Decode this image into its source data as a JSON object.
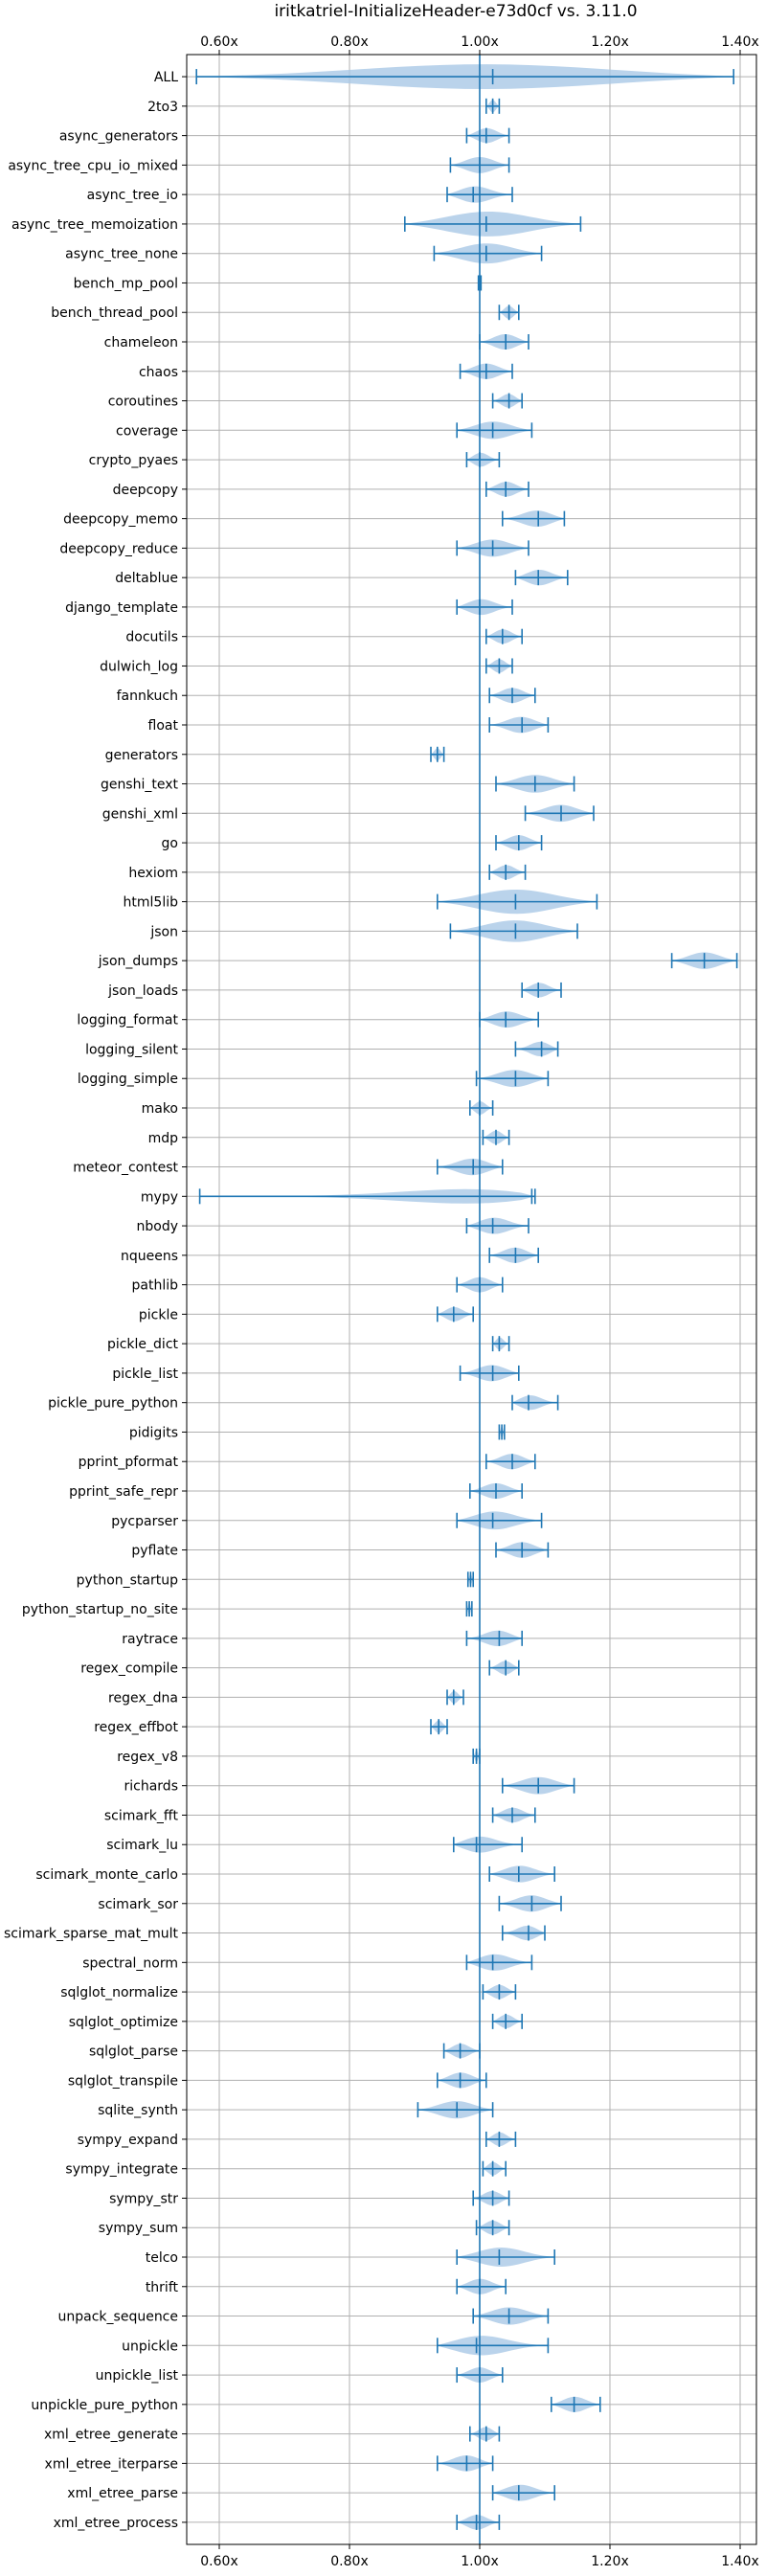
{
  "chart_data": {
    "type": "violin",
    "title": "iritkatriel-InitializeHeader-e73d0cf vs. 3.11.0",
    "xlabel": "",
    "ylabel": "",
    "xlim": [
      0.55,
      1.425
    ],
    "x_ticks": [
      0.6,
      0.8,
      1.0,
      1.2,
      1.4
    ],
    "x_tick_labels": [
      "0.60x",
      "0.80x",
      "1.00x",
      "1.20x",
      "1.40x"
    ],
    "reference_line": 1.0,
    "grid": true,
    "orientation": "horizontal",
    "color": "#1f77b4",
    "fill_color": "#a9c8e6",
    "categories": [
      {
        "name": "ALL",
        "min": 0.565,
        "max": 1.39,
        "mean": 1.02
      },
      {
        "name": "2to3",
        "min": 1.01,
        "max": 1.03,
        "mean": 1.02
      },
      {
        "name": "async_generators",
        "min": 0.98,
        "max": 1.045,
        "mean": 1.01
      },
      {
        "name": "async_tree_cpu_io_mixed",
        "min": 0.955,
        "max": 1.045,
        "mean": 1.0
      },
      {
        "name": "async_tree_io",
        "min": 0.95,
        "max": 1.05,
        "mean": 0.99
      },
      {
        "name": "async_tree_memoization",
        "min": 0.885,
        "max": 1.155,
        "mean": 1.01
      },
      {
        "name": "async_tree_none",
        "min": 0.93,
        "max": 1.095,
        "mean": 1.01
      },
      {
        "name": "bench_mp_pool",
        "min": 0.998,
        "max": 1.002,
        "mean": 1.0
      },
      {
        "name": "bench_thread_pool",
        "min": 1.03,
        "max": 1.06,
        "mean": 1.045
      },
      {
        "name": "chameleon",
        "min": 1.0,
        "max": 1.075,
        "mean": 1.04
      },
      {
        "name": "chaos",
        "min": 0.97,
        "max": 1.05,
        "mean": 1.01
      },
      {
        "name": "coroutines",
        "min": 1.02,
        "max": 1.065,
        "mean": 1.045
      },
      {
        "name": "coverage",
        "min": 0.965,
        "max": 1.08,
        "mean": 1.02
      },
      {
        "name": "crypto_pyaes",
        "min": 0.98,
        "max": 1.03,
        "mean": 1.0
      },
      {
        "name": "deepcopy",
        "min": 1.01,
        "max": 1.075,
        "mean": 1.04
      },
      {
        "name": "deepcopy_memo",
        "min": 1.035,
        "max": 1.13,
        "mean": 1.09
      },
      {
        "name": "deepcopy_reduce",
        "min": 0.965,
        "max": 1.075,
        "mean": 1.02
      },
      {
        "name": "deltablue",
        "min": 1.055,
        "max": 1.135,
        "mean": 1.09
      },
      {
        "name": "django_template",
        "min": 0.965,
        "max": 1.05,
        "mean": 1.0
      },
      {
        "name": "docutils",
        "min": 1.01,
        "max": 1.065,
        "mean": 1.035
      },
      {
        "name": "dulwich_log",
        "min": 1.01,
        "max": 1.05,
        "mean": 1.03
      },
      {
        "name": "fannkuch",
        "min": 1.015,
        "max": 1.085,
        "mean": 1.05
      },
      {
        "name": "float",
        "min": 1.015,
        "max": 1.105,
        "mean": 1.065
      },
      {
        "name": "generators",
        "min": 0.925,
        "max": 0.945,
        "mean": 0.935
      },
      {
        "name": "genshi_text",
        "min": 1.025,
        "max": 1.145,
        "mean": 1.085
      },
      {
        "name": "genshi_xml",
        "min": 1.07,
        "max": 1.175,
        "mean": 1.125
      },
      {
        "name": "go",
        "min": 1.025,
        "max": 1.095,
        "mean": 1.06
      },
      {
        "name": "hexiom",
        "min": 1.015,
        "max": 1.07,
        "mean": 1.04
      },
      {
        "name": "html5lib",
        "min": 0.935,
        "max": 1.18,
        "mean": 1.055
      },
      {
        "name": "json",
        "min": 0.955,
        "max": 1.15,
        "mean": 1.055
      },
      {
        "name": "json_dumps",
        "min": 1.295,
        "max": 1.395,
        "mean": 1.345
      },
      {
        "name": "json_loads",
        "min": 1.065,
        "max": 1.125,
        "mean": 1.09
      },
      {
        "name": "logging_format",
        "min": 1.0,
        "max": 1.09,
        "mean": 1.04
      },
      {
        "name": "logging_silent",
        "min": 1.055,
        "max": 1.12,
        "mean": 1.095
      },
      {
        "name": "logging_simple",
        "min": 0.995,
        "max": 1.105,
        "mean": 1.055
      },
      {
        "name": "mako",
        "min": 0.985,
        "max": 1.02,
        "mean": 1.0
      },
      {
        "name": "mdp",
        "min": 1.005,
        "max": 1.045,
        "mean": 1.025
      },
      {
        "name": "meteor_contest",
        "min": 0.935,
        "max": 1.035,
        "mean": 0.99
      },
      {
        "name": "mypy",
        "min": 0.57,
        "max": 1.085,
        "mean": 1.08
      },
      {
        "name": "nbody",
        "min": 0.98,
        "max": 1.075,
        "mean": 1.02
      },
      {
        "name": "nqueens",
        "min": 1.015,
        "max": 1.09,
        "mean": 1.055
      },
      {
        "name": "pathlib",
        "min": 0.965,
        "max": 1.035,
        "mean": 1.0
      },
      {
        "name": "pickle",
        "min": 0.935,
        "max": 0.99,
        "mean": 0.96
      },
      {
        "name": "pickle_dict",
        "min": 1.02,
        "max": 1.045,
        "mean": 1.03
      },
      {
        "name": "pickle_list",
        "min": 0.97,
        "max": 1.06,
        "mean": 1.02
      },
      {
        "name": "pickle_pure_python",
        "min": 1.05,
        "max": 1.12,
        "mean": 1.075
      },
      {
        "name": "pidigits",
        "min": 1.03,
        "max": 1.038,
        "mean": 1.034
      },
      {
        "name": "pprint_pformat",
        "min": 1.01,
        "max": 1.085,
        "mean": 1.05
      },
      {
        "name": "pprint_safe_repr",
        "min": 0.985,
        "max": 1.065,
        "mean": 1.025
      },
      {
        "name": "pycparser",
        "min": 0.965,
        "max": 1.095,
        "mean": 1.02
      },
      {
        "name": "pyflate",
        "min": 1.025,
        "max": 1.105,
        "mean": 1.065
      },
      {
        "name": "python_startup",
        "min": 0.982,
        "max": 0.99,
        "mean": 0.986
      },
      {
        "name": "python_startup_no_site",
        "min": 0.98,
        "max": 0.988,
        "mean": 0.984
      },
      {
        "name": "raytrace",
        "min": 0.98,
        "max": 1.065,
        "mean": 1.03
      },
      {
        "name": "regex_compile",
        "min": 1.015,
        "max": 1.06,
        "mean": 1.04
      },
      {
        "name": "regex_dna",
        "min": 0.95,
        "max": 0.975,
        "mean": 0.96
      },
      {
        "name": "regex_effbot",
        "min": 0.925,
        "max": 0.95,
        "mean": 0.937
      },
      {
        "name": "regex_v8",
        "min": 0.99,
        "max": 1.0,
        "mean": 0.995
      },
      {
        "name": "richards",
        "min": 1.035,
        "max": 1.145,
        "mean": 1.09
      },
      {
        "name": "scimark_fft",
        "min": 1.02,
        "max": 1.085,
        "mean": 1.05
      },
      {
        "name": "scimark_lu",
        "min": 0.96,
        "max": 1.065,
        "mean": 0.995
      },
      {
        "name": "scimark_monte_carlo",
        "min": 1.015,
        "max": 1.115,
        "mean": 1.06
      },
      {
        "name": "scimark_sor",
        "min": 1.03,
        "max": 1.125,
        "mean": 1.08
      },
      {
        "name": "scimark_sparse_mat_mult",
        "min": 1.035,
        "max": 1.1,
        "mean": 1.075
      },
      {
        "name": "spectral_norm",
        "min": 0.98,
        "max": 1.08,
        "mean": 1.02
      },
      {
        "name": "sqlglot_normalize",
        "min": 1.005,
        "max": 1.055,
        "mean": 1.03
      },
      {
        "name": "sqlglot_optimize",
        "min": 1.02,
        "max": 1.065,
        "mean": 1.04
      },
      {
        "name": "sqlglot_parse",
        "min": 0.945,
        "max": 1.0,
        "mean": 0.97
      },
      {
        "name": "sqlglot_transpile",
        "min": 0.935,
        "max": 1.01,
        "mean": 0.97
      },
      {
        "name": "sqlite_synth",
        "min": 0.905,
        "max": 1.02,
        "mean": 0.965
      },
      {
        "name": "sympy_expand",
        "min": 1.01,
        "max": 1.055,
        "mean": 1.03
      },
      {
        "name": "sympy_integrate",
        "min": 1.005,
        "max": 1.04,
        "mean": 1.02
      },
      {
        "name": "sympy_str",
        "min": 0.99,
        "max": 1.045,
        "mean": 1.02
      },
      {
        "name": "sympy_sum",
        "min": 0.995,
        "max": 1.045,
        "mean": 1.02
      },
      {
        "name": "telco",
        "min": 0.965,
        "max": 1.115,
        "mean": 1.03
      },
      {
        "name": "thrift",
        "min": 0.965,
        "max": 1.04,
        "mean": 1.0
      },
      {
        "name": "unpack_sequence",
        "min": 0.99,
        "max": 1.105,
        "mean": 1.045
      },
      {
        "name": "unpickle",
        "min": 0.935,
        "max": 1.105,
        "mean": 0.995
      },
      {
        "name": "unpickle_list",
        "min": 0.965,
        "max": 1.035,
        "mean": 1.0
      },
      {
        "name": "unpickle_pure_python",
        "min": 1.11,
        "max": 1.185,
        "mean": 1.145
      },
      {
        "name": "xml_etree_generate",
        "min": 0.985,
        "max": 1.03,
        "mean": 1.01
      },
      {
        "name": "xml_etree_iterparse",
        "min": 0.935,
        "max": 1.02,
        "mean": 0.98
      },
      {
        "name": "xml_etree_parse",
        "min": 1.02,
        "max": 1.115,
        "mean": 1.06
      },
      {
        "name": "xml_etree_process",
        "min": 0.965,
        "max": 1.03,
        "mean": 0.995
      }
    ]
  }
}
